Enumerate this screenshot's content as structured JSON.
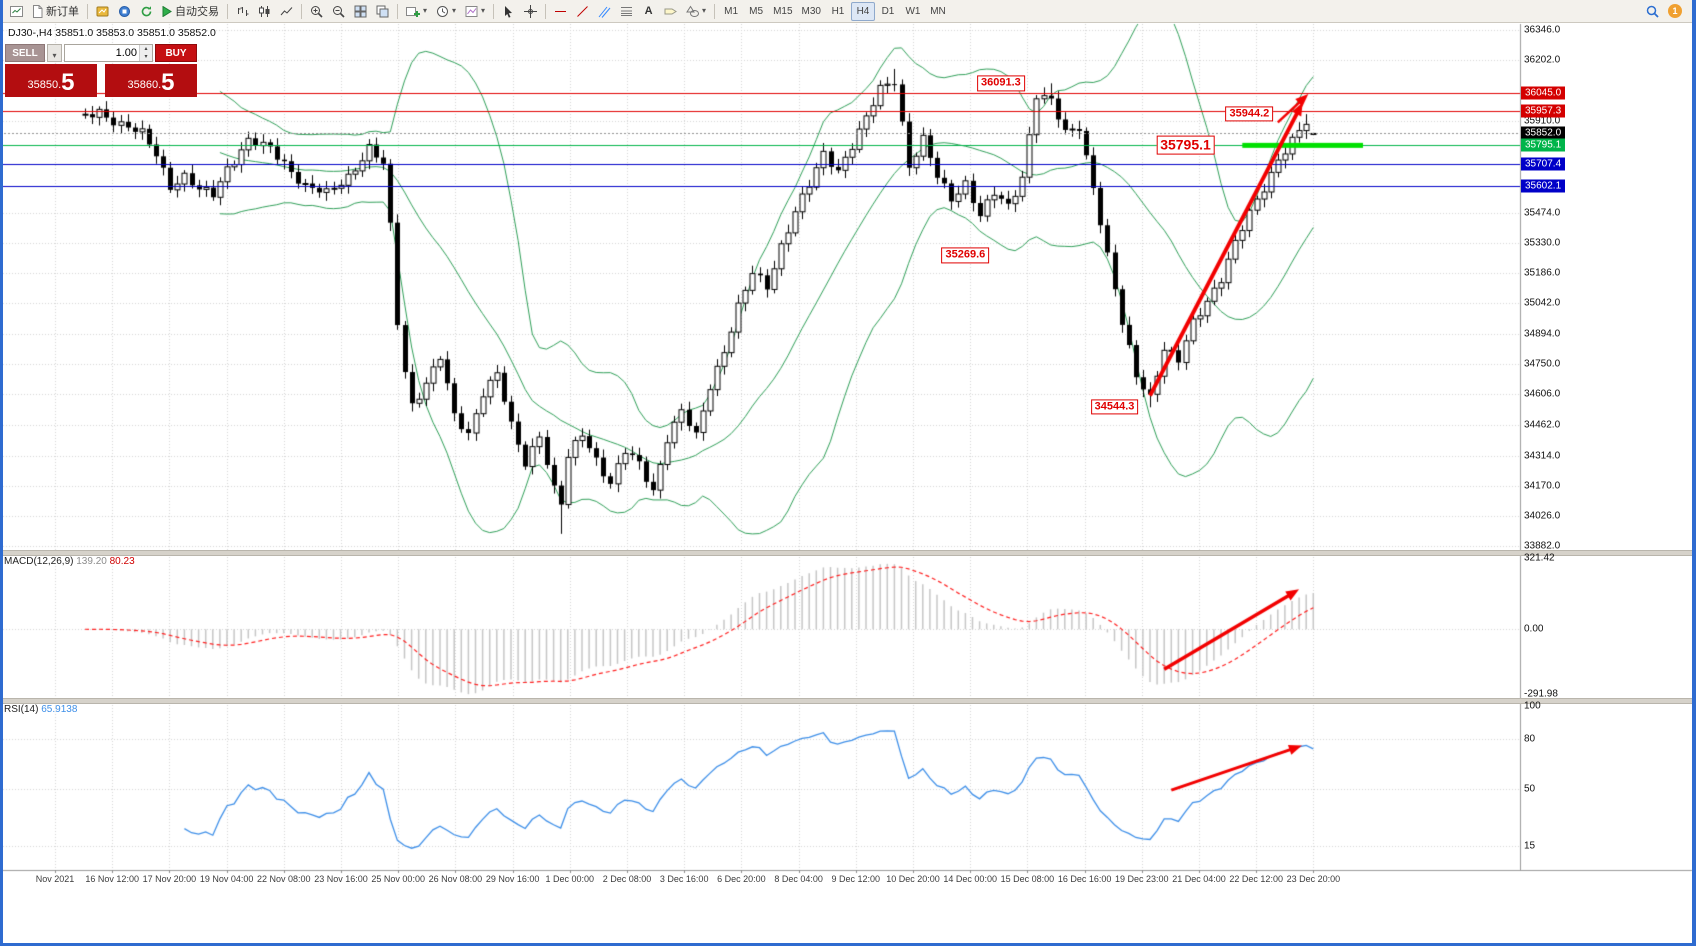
{
  "app": {
    "frame_color": "#2e6bd0",
    "chart_header": "DJ30-,H4 35851.0 35853.0 35851.0 35852.0"
  },
  "toolbar": {
    "new_order_label": "新订单",
    "autotrade_label": "自动交易",
    "text_tool_glyph": "A",
    "timeframes": [
      "M1",
      "M5",
      "M15",
      "M30",
      "H1",
      "H4",
      "D1",
      "W1",
      "MN"
    ],
    "active_timeframe": "H4",
    "account_badge": "1"
  },
  "quote_panel": {
    "sell_label": "SELL",
    "buy_label": "BUY",
    "volume": "1.00",
    "sell_price": "35850.5",
    "buy_price": "35860.5",
    "sell_price_main": "35850.",
    "sell_price_pip": "5",
    "buy_price_main": "35860.",
    "buy_price_pip": "5"
  },
  "chart_data": {
    "type": "candlestick",
    "symbol": "DJ30-",
    "timeframe": "H4",
    "last_ohlc": {
      "open": 35851.0,
      "high": 35853.0,
      "low": 35851.0,
      "close": 35852.0
    },
    "bid": 35852.0,
    "ylim": [
      33882.0,
      36346.0
    ],
    "y_axis_labels": [
      36346.0,
      36202.0,
      35910.0,
      35474.0,
      35330.0,
      35186.0,
      35042.0,
      34894.0,
      34750.0,
      34606.0,
      34462.0,
      34314.0,
      34170.0,
      34026.0,
      33882.0
    ],
    "price_tags": [
      {
        "value": "36045.0",
        "price": 36045.0,
        "color": "#d40000"
      },
      {
        "value": "35957.3",
        "price": 35957.3,
        "color": "#d40000"
      },
      {
        "value": "35852.0",
        "price": 35852.0,
        "color": "#000000"
      },
      {
        "value": "35795.1",
        "price": 35795.1,
        "color": "#00b44a"
      },
      {
        "value": "35707.4",
        "price": 35707.4,
        "color": "#0000c8"
      },
      {
        "value": "35602.1",
        "price": 35602.1,
        "color": "#0000c8"
      }
    ],
    "hlines": [
      {
        "price": 36045.0,
        "color": "#e00000",
        "style": "solid"
      },
      {
        "price": 35957.3,
        "color": "#e00000",
        "style": "solid"
      },
      {
        "price": 35852.0,
        "color": "#909090",
        "style": "dot"
      },
      {
        "price": 35795.1,
        "color": "#00b44a",
        "style": "solid"
      },
      {
        "price": 35707.4,
        "color": "#0000c8",
        "style": "solid"
      },
      {
        "price": 35602.1,
        "color": "#0000c8",
        "style": "solid"
      }
    ],
    "annotations": [
      {
        "text": "36091.3",
        "i": 139,
        "price": 36091.3,
        "size": 11
      },
      {
        "text": "35944.2",
        "i": 174,
        "price": 35944.2,
        "size": 11
      },
      {
        "text": "35795.1",
        "i": 165,
        "price": 35795.1,
        "size": 14
      },
      {
        "text": "35269.6",
        "i": 134,
        "price": 35269.6,
        "size": 11
      },
      {
        "text": "34544.3",
        "i": 155,
        "price": 34544.3,
        "size": 11
      }
    ],
    "highlight_segment": {
      "price": 35795.1,
      "i1": 173,
      "i2": 190,
      "color": "#00e000",
      "thickness": 5
    },
    "trend_arrows": [
      {
        "i1": 160,
        "p1": 34600,
        "i2": 181.5,
        "p2": 36000,
        "width": 4
      },
      {
        "i1": 178,
        "p1": 35905,
        "i2": 182.3,
        "p2": 36040,
        "width": 2.5
      }
    ],
    "bollinger": {
      "period": 20,
      "deviation": 2,
      "color": "#2e9e57"
    },
    "candle_count": 184,
    "close_waypoints": [
      [
        10,
        35930
      ],
      [
        12,
        35960
      ],
      [
        15,
        35895
      ],
      [
        18,
        35845
      ],
      [
        20,
        35755
      ],
      [
        22,
        35605
      ],
      [
        24,
        35645
      ],
      [
        26,
        35575
      ],
      [
        28,
        35560
      ],
      [
        30,
        35690
      ],
      [
        33,
        35815
      ],
      [
        36,
        35775
      ],
      [
        38,
        35715
      ],
      [
        41,
        35600
      ],
      [
        44,
        35560
      ],
      [
        47,
        35650
      ],
      [
        50,
        35780
      ],
      [
        52,
        35700
      ],
      [
        53,
        35400
      ],
      [
        54,
        34950
      ],
      [
        55,
        34720
      ],
      [
        56,
        34560
      ],
      [
        58,
        34660
      ],
      [
        60,
        34780
      ],
      [
        62,
        34500
      ],
      [
        64,
        34420
      ],
      [
        66,
        34620
      ],
      [
        68,
        34700
      ],
      [
        70,
        34450
      ],
      [
        72,
        34280
      ],
      [
        74,
        34420
      ],
      [
        76,
        34150
      ],
      [
        77,
        34080
      ],
      [
        78,
        34300
      ],
      [
        80,
        34420
      ],
      [
        82,
        34300
      ],
      [
        84,
        34180
      ],
      [
        86,
        34330
      ],
      [
        88,
        34270
      ],
      [
        90,
        34150
      ],
      [
        92,
        34400
      ],
      [
        94,
        34520
      ],
      [
        96,
        34400
      ],
      [
        98,
        34650
      ],
      [
        100,
        34820
      ],
      [
        102,
        35020
      ],
      [
        104,
        35180
      ],
      [
        106,
        35120
      ],
      [
        108,
        35320
      ],
      [
        110,
        35480
      ],
      [
        112,
        35600
      ],
      [
        114,
        35750
      ],
      [
        116,
        35680
      ],
      [
        118,
        35800
      ],
      [
        120,
        35920
      ],
      [
        122,
        36060
      ],
      [
        124,
        36110
      ],
      [
        126,
        35700
      ],
      [
        128,
        35820
      ],
      [
        130,
        35640
      ],
      [
        132,
        35540
      ],
      [
        134,
        35620
      ],
      [
        136,
        35460
      ],
      [
        138,
        35560
      ],
      [
        140,
        35500
      ],
      [
        142,
        35650
      ],
      [
        144,
        36040
      ],
      [
        146,
        36000
      ],
      [
        148,
        35850
      ],
      [
        150,
        35890
      ],
      [
        152,
        35600
      ],
      [
        154,
        35260
      ],
      [
        156,
        34940
      ],
      [
        158,
        34700
      ],
      [
        160,
        34600
      ],
      [
        162,
        34820
      ],
      [
        164,
        34760
      ],
      [
        166,
        34950
      ],
      [
        168,
        35060
      ],
      [
        170,
        35160
      ],
      [
        172,
        35320
      ],
      [
        174,
        35470
      ],
      [
        176,
        35600
      ],
      [
        178,
        35730
      ],
      [
        180,
        35810
      ],
      [
        182,
        35900
      ],
      [
        183,
        35852
      ]
    ],
    "forced_extremes": [
      {
        "i": 77,
        "field": "l",
        "value": 33940
      },
      {
        "i": 124,
        "field": "h",
        "value": 36160
      },
      {
        "i": 146,
        "field": "h",
        "value": 36091.3
      },
      {
        "i": 160,
        "field": "l",
        "value": 34544.3
      },
      {
        "i": 182,
        "field": "h",
        "value": 35944.2
      }
    ]
  },
  "macd_panel": {
    "label": "MACD(12,26,9)",
    "main_value": "139.20",
    "signal_value": "80.23",
    "axis_labels": [
      321.42,
      0.0,
      -291.98
    ],
    "params": {
      "fast": 12,
      "slow": 26,
      "signal": 9
    },
    "histogram_color": "#c6c6c6",
    "signal_color": "#ff2020",
    "arrow": {
      "i1": 162,
      "v1": -180,
      "i2": 181,
      "v2": 180
    }
  },
  "rsi_panel": {
    "label": "RSI(14)",
    "value": "65.9138",
    "period": 14,
    "axis_labels": [
      100,
      80,
      50,
      15
    ],
    "line_color": "#3e8fe8",
    "arrow": {
      "i1": 163,
      "v1": 49,
      "i2": 181.4,
      "v2": 76
    }
  },
  "time_axis": [
    "Nov 2021",
    "16 Nov 12:00",
    "17 Nov 20:00",
    "19 Nov 04:00",
    "22 Nov 08:00",
    "23 Nov 16:00",
    "25 Nov 00:00",
    "26 Nov 08:00",
    "29 Nov 16:00",
    "1 Dec 00:00",
    "2 Dec 08:00",
    "3 Dec 16:00",
    "6 Dec 20:00",
    "8 Dec 04:00",
    "9 Dec 12:00",
    "10 Dec 20:00",
    "14 Dec 00:00",
    "15 Dec 08:00",
    "16 Dec 16:00",
    "19 Dec 23:00",
    "21 Dec 04:00",
    "22 Dec 12:00",
    "23 Dec 20:00"
  ]
}
